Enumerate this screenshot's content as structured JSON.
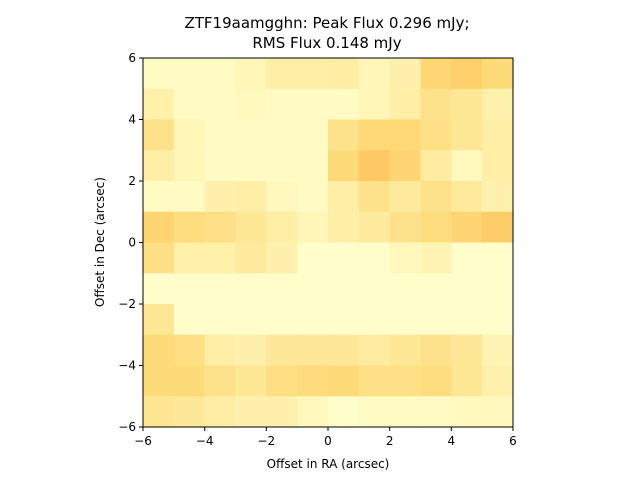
{
  "chart_data": {
    "type": "heatmap",
    "title_line1": "ZTF19aamgghn: Peak Flux 0.296 mJy;",
    "title_line2": "RMS Flux 0.148 mJy",
    "xlabel": "Offset in RA (arcsec)",
    "ylabel": "Offset in Dec (arcsec)",
    "xlim": [
      -6,
      6
    ],
    "ylim": [
      -6,
      6
    ],
    "xticks": [
      -6,
      -4,
      -2,
      0,
      2,
      4,
      6
    ],
    "yticks": [
      -6,
      -4,
      -2,
      0,
      2,
      4,
      6
    ],
    "xtick_labels": [
      "−6",
      "−4",
      "−2",
      "0",
      "2",
      "4",
      "6"
    ],
    "ytick_labels": [
      "−6",
      "−4",
      "−2",
      "0",
      "2",
      "4",
      "6"
    ],
    "colormap": "YlOrBr-like (light yellow to orange)",
    "cell_grid_note": "12 columns x 12 rows, rows listed top (Dec +6) to bottom (Dec -6)",
    "z": [
      [
        0.05,
        0.05,
        0.05,
        0.12,
        0.22,
        0.22,
        0.24,
        0.12,
        0.18,
        0.52,
        0.62,
        0.48
      ],
      [
        0.2,
        0.05,
        0.05,
        0.08,
        0.05,
        0.05,
        0.05,
        0.12,
        0.22,
        0.38,
        0.32,
        0.2
      ],
      [
        0.38,
        0.12,
        0.05,
        0.05,
        0.05,
        0.05,
        0.38,
        0.5,
        0.5,
        0.4,
        0.32,
        0.22
      ],
      [
        0.22,
        0.12,
        0.05,
        0.05,
        0.05,
        0.05,
        0.48,
        0.7,
        0.55,
        0.25,
        0.08,
        0.22
      ],
      [
        0.05,
        0.05,
        0.18,
        0.22,
        0.1,
        0.05,
        0.22,
        0.38,
        0.28,
        0.38,
        0.28,
        0.18
      ],
      [
        0.55,
        0.45,
        0.4,
        0.32,
        0.22,
        0.12,
        0.22,
        0.28,
        0.38,
        0.45,
        0.55,
        0.65
      ],
      [
        0.42,
        0.2,
        0.2,
        0.28,
        0.18,
        0.02,
        0.02,
        0.02,
        0.1,
        0.14,
        0.02,
        0.02
      ],
      [
        0.02,
        0.02,
        0.02,
        0.02,
        0.02,
        0.02,
        0.02,
        0.02,
        0.02,
        0.02,
        0.02,
        0.02
      ],
      [
        0.32,
        0.02,
        0.02,
        0.02,
        0.02,
        0.02,
        0.02,
        0.02,
        0.02,
        0.02,
        0.02,
        0.02
      ],
      [
        0.48,
        0.42,
        0.22,
        0.18,
        0.3,
        0.3,
        0.3,
        0.26,
        0.32,
        0.38,
        0.3,
        0.14
      ],
      [
        0.48,
        0.48,
        0.38,
        0.32,
        0.42,
        0.46,
        0.48,
        0.4,
        0.4,
        0.45,
        0.32,
        0.2
      ],
      [
        0.34,
        0.3,
        0.24,
        0.18,
        0.18,
        0.1,
        0.02,
        0.05,
        0.05,
        0.05,
        0.08,
        0.1
      ]
    ]
  }
}
